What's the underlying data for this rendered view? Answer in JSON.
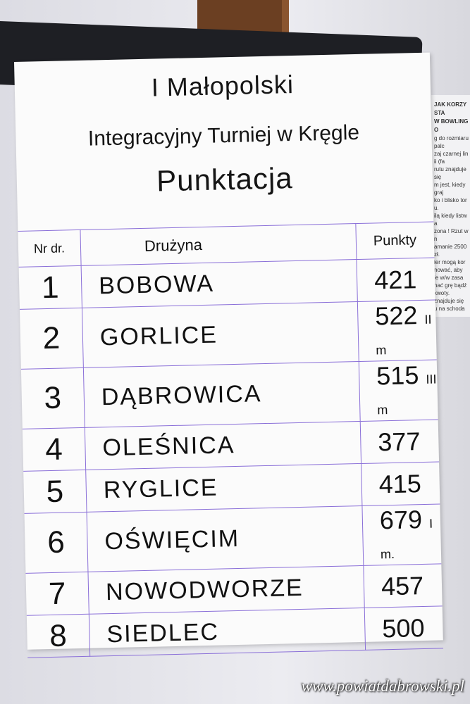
{
  "title": {
    "line1": "I Małopolski",
    "line2": "Integracyjny Turniej w Kręgle",
    "line3": "Punktacja"
  },
  "table": {
    "headers": {
      "num": "Nr dr.",
      "team": "Drużyna",
      "points": "Punkty"
    },
    "rows": [
      {
        "num": "1",
        "team": "BOBOWA",
        "points": "421",
        "place": ""
      },
      {
        "num": "2",
        "team": "GORLICE",
        "points": "522",
        "place": "II m"
      },
      {
        "num": "3",
        "team": "DĄBROWICA",
        "points": "515",
        "place": "III m"
      },
      {
        "num": "4",
        "team": "OLEŚNICA",
        "points": "377",
        "place": ""
      },
      {
        "num": "5",
        "team": "RYGLICE",
        "points": "415",
        "place": ""
      },
      {
        "num": "6",
        "team": "OŚWIĘCIM",
        "points": "679",
        "place": "I m."
      },
      {
        "num": "7",
        "team": "NOWODWORZE",
        "points": "457",
        "place": ""
      },
      {
        "num": "8",
        "team": "SIEDLEC",
        "points": "500",
        "place": ""
      }
    ]
  },
  "notice": {
    "heading1": "JAK KORZYSTA",
    "heading2": "W BOWLINGO",
    "lines": [
      "g do rozmiaru palc",
      "zaj czarnej linii (fa",
      "rutu znajduje się",
      "m jest, kiedy graj",
      "ko i blisko toru.",
      "ilą kiedy listwa",
      "zona ! Rzut w n",
      "amanie 2500 zł.",
      "ier mogą kor",
      "nować, aby",
      "ie w/w zasa",
      "nać grę bądź",
      "kwoty.",
      "znajduje się",
      "u na schoda"
    ]
  },
  "watermark": "www.powiatdabrowski.pl"
}
